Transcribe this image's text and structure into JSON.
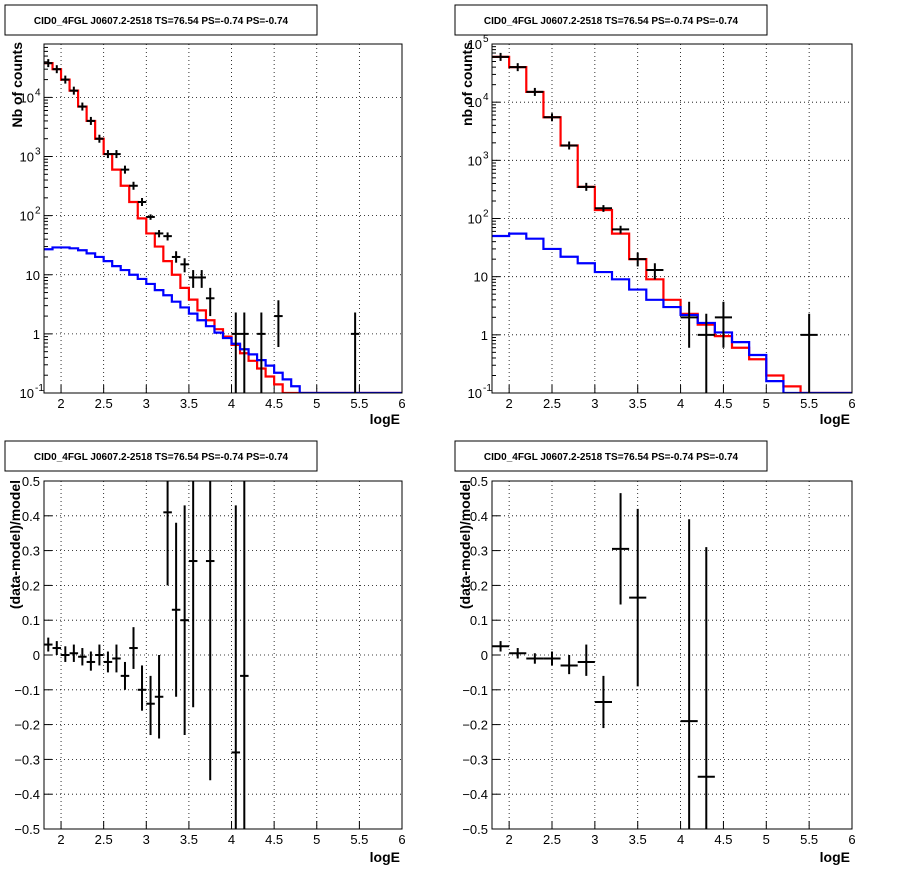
{
  "panels": [
    {
      "title": "CID0_4FGL J0607.2-2518 TS=76.54 PS=-0.74 PS=-0.74",
      "xlabel": "logE",
      "ylabel": "Nb of counts",
      "chart_data": {
        "type": "line",
        "log_y": true,
        "grid": true,
        "xlim": [
          1.8,
          6.0
        ],
        "ylim": [
          0.1,
          80000
        ],
        "x_ticks": [
          "2",
          "2.5",
          "3",
          "3.5",
          "4",
          "4.5",
          "5",
          "5.5",
          "6"
        ],
        "y_ticks": [
          "10^-1",
          "1",
          "10",
          "10^2",
          "10^3",
          "10^4"
        ],
        "bin_edges": [
          1.8,
          1.9,
          2.0,
          2.1,
          2.2,
          2.3,
          2.4,
          2.5,
          2.6,
          2.7,
          2.8,
          2.9,
          3.0,
          3.1,
          3.2,
          3.3,
          3.4,
          3.5,
          3.6,
          3.7,
          3.8,
          3.9,
          4.0,
          4.1,
          4.2,
          4.3,
          4.4,
          4.5,
          4.6,
          4.7,
          4.8,
          4.9,
          5.0,
          5.1,
          5.2,
          5.3,
          5.4,
          5.5,
          5.6,
          5.7,
          5.8,
          5.9,
          6.0
        ],
        "series": [
          {
            "color": "#ff0000",
            "values": [
              38000,
              30000,
              20000,
              13000,
              7000,
              4000,
              2000,
              1100,
              600,
              320,
              170,
              90,
              50,
              30,
              17,
              10,
              6,
              3.8,
              2.5,
              1.7,
              1.2,
              0.9,
              0.65,
              0.47,
              0.35,
              0.26,
              0.19,
              0.14,
              0.1,
              0.1,
              0.1,
              0.1,
              0.1,
              0.1,
              0.1,
              0.1,
              0.1,
              0.1,
              0.1,
              0.1,
              0.1,
              0.1
            ]
          },
          {
            "color": "#0000ff",
            "values": [
              27,
              29,
              29,
              28,
              26,
              23,
              20,
              17,
              14,
              12,
              10,
              8.5,
              7,
              5.5,
              4.5,
              3.5,
              2.8,
              2.2,
              1.7,
              1.35,
              1.05,
              0.85,
              0.68,
              0.55,
              0.45,
              0.36,
              0.29,
              0.22,
              0.17,
              0.13,
              0.1,
              0.1,
              0.1,
              0.1,
              0.1,
              0.1,
              0.1,
              0.1,
              0.1,
              0.1,
              0.1,
              0.1
            ]
          },
          {
            "color": "#000000",
            "kind": "points",
            "points": [
              {
                "x": 1.85,
                "y": 38000
              },
              {
                "x": 1.95,
                "y": 30000
              },
              {
                "x": 2.05,
                "y": 20000
              },
              {
                "x": 2.15,
                "y": 13000
              },
              {
                "x": 2.25,
                "y": 7000
              },
              {
                "x": 2.35,
                "y": 4000
              },
              {
                "x": 2.45,
                "y": 2000
              },
              {
                "x": 2.55,
                "y": 1100
              },
              {
                "x": 2.65,
                "y": 1100
              },
              {
                "x": 2.75,
                "y": 600
              },
              {
                "x": 2.85,
                "y": 320
              },
              {
                "x": 2.95,
                "y": 170
              },
              {
                "x": 3.05,
                "y": 95,
                "lo": 85,
                "hi": 105
              },
              {
                "x": 3.15,
                "y": 50,
                "lo": 43,
                "hi": 57
              },
              {
                "x": 3.25,
                "y": 45,
                "lo": 38,
                "hi": 52
              },
              {
                "x": 3.35,
                "y": 20,
                "lo": 16,
                "hi": 25
              },
              {
                "x": 3.45,
                "y": 15,
                "lo": 11,
                "hi": 19
              },
              {
                "x": 3.55,
                "y": 9,
                "lo": 6,
                "hi": 12
              },
              {
                "x": 3.65,
                "y": 9,
                "lo": 6,
                "hi": 12
              },
              {
                "x": 3.75,
                "y": 4,
                "lo": 2,
                "hi": 6
              },
              {
                "x": 4.05,
                "y": 1,
                "lo": 0.1,
                "hi": 2.3
              },
              {
                "x": 4.15,
                "y": 1,
                "lo": 0.1,
                "hi": 2.3
              },
              {
                "x": 4.35,
                "y": 1,
                "lo": 0.1,
                "hi": 2.3
              },
              {
                "x": 4.55,
                "y": 2,
                "lo": 0.6,
                "hi": 3.7
              },
              {
                "x": 5.45,
                "y": 1,
                "lo": 0.1,
                "hi": 2.3
              }
            ]
          }
        ]
      }
    },
    {
      "title": "CID0_4FGL J0607.2-2518 TS=76.54 PS=-0.74 PS=-0.74",
      "xlabel": "logE",
      "ylabel": "nb of counts",
      "chart_data": {
        "type": "line",
        "log_y": true,
        "grid": true,
        "xlim": [
          1.8,
          6.0
        ],
        "ylim": [
          0.1,
          100000
        ],
        "x_ticks": [
          "2",
          "2.5",
          "3",
          "3.5",
          "4",
          "4.5",
          "5",
          "5.5",
          "6"
        ],
        "y_ticks": [
          "10^-1",
          "1",
          "10",
          "10^2",
          "10^3",
          "10^4",
          "10^5"
        ],
        "bin_edges": [
          1.8,
          2.0,
          2.2,
          2.4,
          2.6,
          2.8,
          3.0,
          3.2,
          3.4,
          3.6,
          3.8,
          4.0,
          4.2,
          4.4,
          4.6,
          4.8,
          5.0,
          5.2,
          5.4,
          5.6,
          5.8,
          6.0
        ],
        "series": [
          {
            "color": "#ff0000",
            "values": [
              60000,
              40000,
              15000,
              5500,
              1800,
              350,
              140,
              55,
              20,
              9,
              4,
              2.3,
              1.5,
              0.95,
              0.6,
              0.38,
              0.2,
              0.13,
              0.1,
              0.1,
              0.1
            ]
          },
          {
            "color": "#0000ff",
            "values": [
              50,
              55,
              45,
              30,
              22,
              17,
              12,
              9,
              6,
              4,
              3,
              2.2,
              1.6,
              1.1,
              0.75,
              0.45,
              0.16,
              0.1,
              0.1,
              0.1,
              0.1
            ]
          },
          {
            "color": "#000000",
            "kind": "points",
            "points": [
              {
                "x": 1.9,
                "y": 60000
              },
              {
                "x": 2.1,
                "y": 40000
              },
              {
                "x": 2.3,
                "y": 15000
              },
              {
                "x": 2.5,
                "y": 5500
              },
              {
                "x": 2.7,
                "y": 1800
              },
              {
                "x": 2.9,
                "y": 350
              },
              {
                "x": 3.1,
                "y": 150,
                "lo": 130,
                "hi": 170
              },
              {
                "x": 3.3,
                "y": 65,
                "lo": 55,
                "hi": 75
              },
              {
                "x": 3.5,
                "y": 20,
                "lo": 15,
                "hi": 26
              },
              {
                "x": 3.7,
                "y": 13,
                "lo": 9,
                "hi": 17
              },
              {
                "x": 4.1,
                "y": 2,
                "lo": 0.6,
                "hi": 3.7
              },
              {
                "x": 4.3,
                "y": 1,
                "lo": 0.1,
                "hi": 2.3
              },
              {
                "x": 4.5,
                "y": 2,
                "lo": 0.6,
                "hi": 3.7
              },
              {
                "x": 5.5,
                "y": 1,
                "lo": 0.1,
                "hi": 2.3
              }
            ]
          }
        ]
      }
    },
    {
      "title": "CID0_4FGL J0607.2-2518 TS=76.54 PS=-0.74 PS=-0.74",
      "xlabel": "logE",
      "ylabel": "(data-model)/model",
      "chart_data": {
        "type": "scatter",
        "log_y": false,
        "grid": true,
        "xlim": [
          1.8,
          6.0
        ],
        "ylim": [
          -0.5,
          0.5
        ],
        "x_ticks": [
          "2",
          "2.5",
          "3",
          "3.5",
          "4",
          "4.5",
          "5",
          "5.5",
          "6"
        ],
        "y_ticks": [
          "−0.5",
          "−0.4",
          "−0.3",
          "−0.2",
          "−0.1",
          "0",
          "0.1",
          "0.2",
          "0.3",
          "0.4",
          "0.5"
        ],
        "series": [
          {
            "color": "#000000",
            "kind": "points",
            "xerr": 0.05,
            "points": [
              {
                "x": 1.85,
                "y": 0.03,
                "lo": 0.01,
                "hi": 0.05
              },
              {
                "x": 1.95,
                "y": 0.02,
                "lo": 0.0,
                "hi": 0.04
              },
              {
                "x": 2.05,
                "y": 0.0,
                "lo": -0.02,
                "hi": 0.025
              },
              {
                "x": 2.15,
                "y": 0.005,
                "lo": -0.02,
                "hi": 0.03
              },
              {
                "x": 2.25,
                "y": -0.005,
                "lo": -0.03,
                "hi": 0.02
              },
              {
                "x": 2.35,
                "y": -0.02,
                "lo": -0.045,
                "hi": 0.01
              },
              {
                "x": 2.45,
                "y": 0.0,
                "lo": -0.03,
                "hi": 0.03
              },
              {
                "x": 2.55,
                "y": -0.02,
                "lo": -0.05,
                "hi": 0.01
              },
              {
                "x": 2.65,
                "y": -0.01,
                "lo": -0.05,
                "hi": 0.03
              },
              {
                "x": 2.75,
                "y": -0.06,
                "lo": -0.1,
                "hi": -0.02
              },
              {
                "x": 2.85,
                "y": 0.02,
                "lo": -0.04,
                "hi": 0.08
              },
              {
                "x": 2.95,
                "y": -0.1,
                "lo": -0.16,
                "hi": -0.03
              },
              {
                "x": 3.05,
                "y": -0.14,
                "lo": -0.23,
                "hi": -0.06
              },
              {
                "x": 3.15,
                "y": -0.12,
                "lo": -0.24,
                "hi": 0.0
              },
              {
                "x": 3.25,
                "y": 0.41,
                "lo": 0.2,
                "hi": 0.6
              },
              {
                "x": 3.35,
                "y": 0.13,
                "lo": -0.12,
                "hi": 0.38
              },
              {
                "x": 3.45,
                "y": 0.1,
                "lo": -0.23,
                "hi": 0.43
              },
              {
                "x": 3.55,
                "y": 0.27,
                "lo": -0.15,
                "hi": 0.7
              },
              {
                "x": 3.75,
                "y": 0.27,
                "lo": -0.36,
                "hi": 0.9
              },
              {
                "x": 4.05,
                "y": -0.28,
                "lo": -1.0,
                "hi": 0.43
              },
              {
                "x": 4.15,
                "y": -0.06,
                "lo": -1.0,
                "hi": 0.9
              }
            ]
          }
        ]
      }
    },
    {
      "title": "CID0_4FGL J0607.2-2518 TS=76.54 PS=-0.74 PS=-0.74",
      "xlabel": "logE",
      "ylabel": "(data-model)/model",
      "chart_data": {
        "type": "scatter",
        "log_y": false,
        "grid": true,
        "xlim": [
          1.8,
          6.0
        ],
        "ylim": [
          -0.5,
          0.5
        ],
        "x_ticks": [
          "2",
          "2.5",
          "3",
          "3.5",
          "4",
          "4.5",
          "5",
          "5.5",
          "6"
        ],
        "y_ticks": [
          "−0.5",
          "−0.4",
          "−0.3",
          "−0.2",
          "−0.1",
          "0",
          "0.1",
          "0.2",
          "0.3",
          "0.4",
          "0.5"
        ],
        "series": [
          {
            "color": "#000000",
            "kind": "points",
            "xerr": 0.1,
            "points": [
              {
                "x": 1.9,
                "y": 0.025,
                "lo": 0.01,
                "hi": 0.04
              },
              {
                "x": 2.1,
                "y": 0.005,
                "lo": -0.01,
                "hi": 0.02
              },
              {
                "x": 2.3,
                "y": -0.01,
                "lo": -0.025,
                "hi": 0.005
              },
              {
                "x": 2.5,
                "y": -0.01,
                "lo": -0.03,
                "hi": 0.01
              },
              {
                "x": 2.7,
                "y": -0.03,
                "lo": -0.055,
                "hi": 0.0
              },
              {
                "x": 2.9,
                "y": -0.02,
                "lo": -0.06,
                "hi": 0.03
              },
              {
                "x": 3.1,
                "y": -0.135,
                "lo": -0.21,
                "hi": -0.06
              },
              {
                "x": 3.3,
                "y": 0.305,
                "lo": 0.145,
                "hi": 0.465
              },
              {
                "x": 3.5,
                "y": 0.165,
                "lo": -0.09,
                "hi": 0.42
              },
              {
                "x": 4.1,
                "y": -0.19,
                "lo": -0.8,
                "hi": 0.39
              },
              {
                "x": 4.3,
                "y": -0.35,
                "lo": -1.0,
                "hi": 0.31
              }
            ]
          }
        ]
      }
    }
  ]
}
